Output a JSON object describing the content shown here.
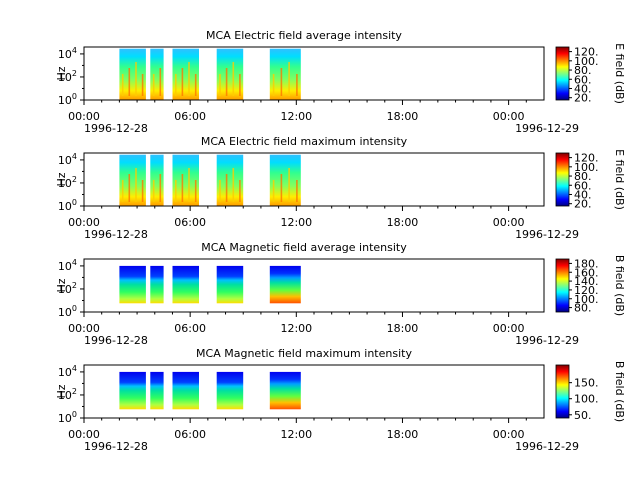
{
  "figure": {
    "time_axis": {
      "start": "1996-12-28T00:00",
      "end": "1996-12-29T02:00",
      "tick_labels": [
        "00:00",
        "06:00",
        "12:00",
        "18:00",
        "00:00"
      ],
      "date_left": "1996-12-28",
      "date_right": "1996-12-29"
    },
    "y_axis": {
      "label": "Hz",
      "scale": "log",
      "tick_labels": [
        {
          "base": "10",
          "exp": "0"
        },
        {
          "base": "10",
          "exp": "2"
        },
        {
          "base": "10",
          "exp": "4"
        }
      ]
    }
  },
  "chart_data": [
    {
      "type": "heatmap",
      "title": "MCA  Electric field average intensity",
      "ylabel": "Hz",
      "ylim_exponent": [
        0,
        4.6
      ],
      "colorbar": {
        "label": "E field (dB)",
        "range": [
          15,
          130
        ],
        "tick_labels": [
          "20.",
          "40.",
          "60.",
          "80.",
          "100.",
          "120."
        ]
      },
      "data_blocks": [
        {
          "start": "1996-12-28T02:00",
          "end": "1996-12-28T03:30"
        },
        {
          "start": "1996-12-28T03:45",
          "end": "1996-12-28T04:30"
        },
        {
          "start": "1996-12-28T05:00",
          "end": "1996-12-28T06:30"
        },
        {
          "start": "1996-12-28T07:30",
          "end": "1996-12-28T09:00"
        },
        {
          "start": "1996-12-28T10:30",
          "end": "1996-12-28T12:15"
        }
      ]
    },
    {
      "type": "heatmap",
      "title": "MCA  Electric field maximum intensity",
      "ylabel": "Hz",
      "ylim_exponent": [
        0,
        4.6
      ],
      "colorbar": {
        "label": "E field (dB)",
        "range": [
          15,
          130
        ],
        "tick_labels": [
          "20.",
          "40.",
          "60.",
          "80.",
          "100.",
          "120."
        ]
      },
      "data_blocks": [
        {
          "start": "1996-12-28T02:00",
          "end": "1996-12-28T03:30"
        },
        {
          "start": "1996-12-28T03:45",
          "end": "1996-12-28T04:30"
        },
        {
          "start": "1996-12-28T05:00",
          "end": "1996-12-28T06:30"
        },
        {
          "start": "1996-12-28T07:30",
          "end": "1996-12-28T09:00"
        },
        {
          "start": "1996-12-28T10:30",
          "end": "1996-12-28T12:15"
        }
      ]
    },
    {
      "type": "heatmap",
      "title": "MCA  Magnetic field average intensity",
      "ylabel": "Hz",
      "ylim_exponent": [
        0,
        4.6
      ],
      "colorbar": {
        "label": "B field (dB)",
        "range": [
          70,
          190
        ],
        "tick_labels": [
          "80.",
          "100.",
          "120.",
          "140.",
          "160.",
          "180."
        ]
      },
      "data_blocks": [
        {
          "start": "1996-12-28T02:00",
          "end": "1996-12-28T03:30"
        },
        {
          "start": "1996-12-28T03:45",
          "end": "1996-12-28T04:30"
        },
        {
          "start": "1996-12-28T05:00",
          "end": "1996-12-28T06:30"
        },
        {
          "start": "1996-12-28T07:30",
          "end": "1996-12-28T09:00"
        },
        {
          "start": "1996-12-28T10:30",
          "end": "1996-12-28T12:15"
        }
      ]
    },
    {
      "type": "heatmap",
      "title": "MCA  Magnetic field maximum intensity",
      "ylabel": "Hz",
      "ylim_exponent": [
        0,
        4.6
      ],
      "colorbar": {
        "label": "B field (dB)",
        "range": [
          40,
          205
        ],
        "tick_labels": [
          "50.",
          "100.",
          "150."
        ]
      },
      "data_blocks": [
        {
          "start": "1996-12-28T02:00",
          "end": "1996-12-28T03:30"
        },
        {
          "start": "1996-12-28T03:45",
          "end": "1996-12-28T04:30"
        },
        {
          "start": "1996-12-28T05:00",
          "end": "1996-12-28T06:30"
        },
        {
          "start": "1996-12-28T07:30",
          "end": "1996-12-28T09:00"
        },
        {
          "start": "1996-12-28T10:30",
          "end": "1996-12-28T12:15"
        }
      ]
    }
  ]
}
